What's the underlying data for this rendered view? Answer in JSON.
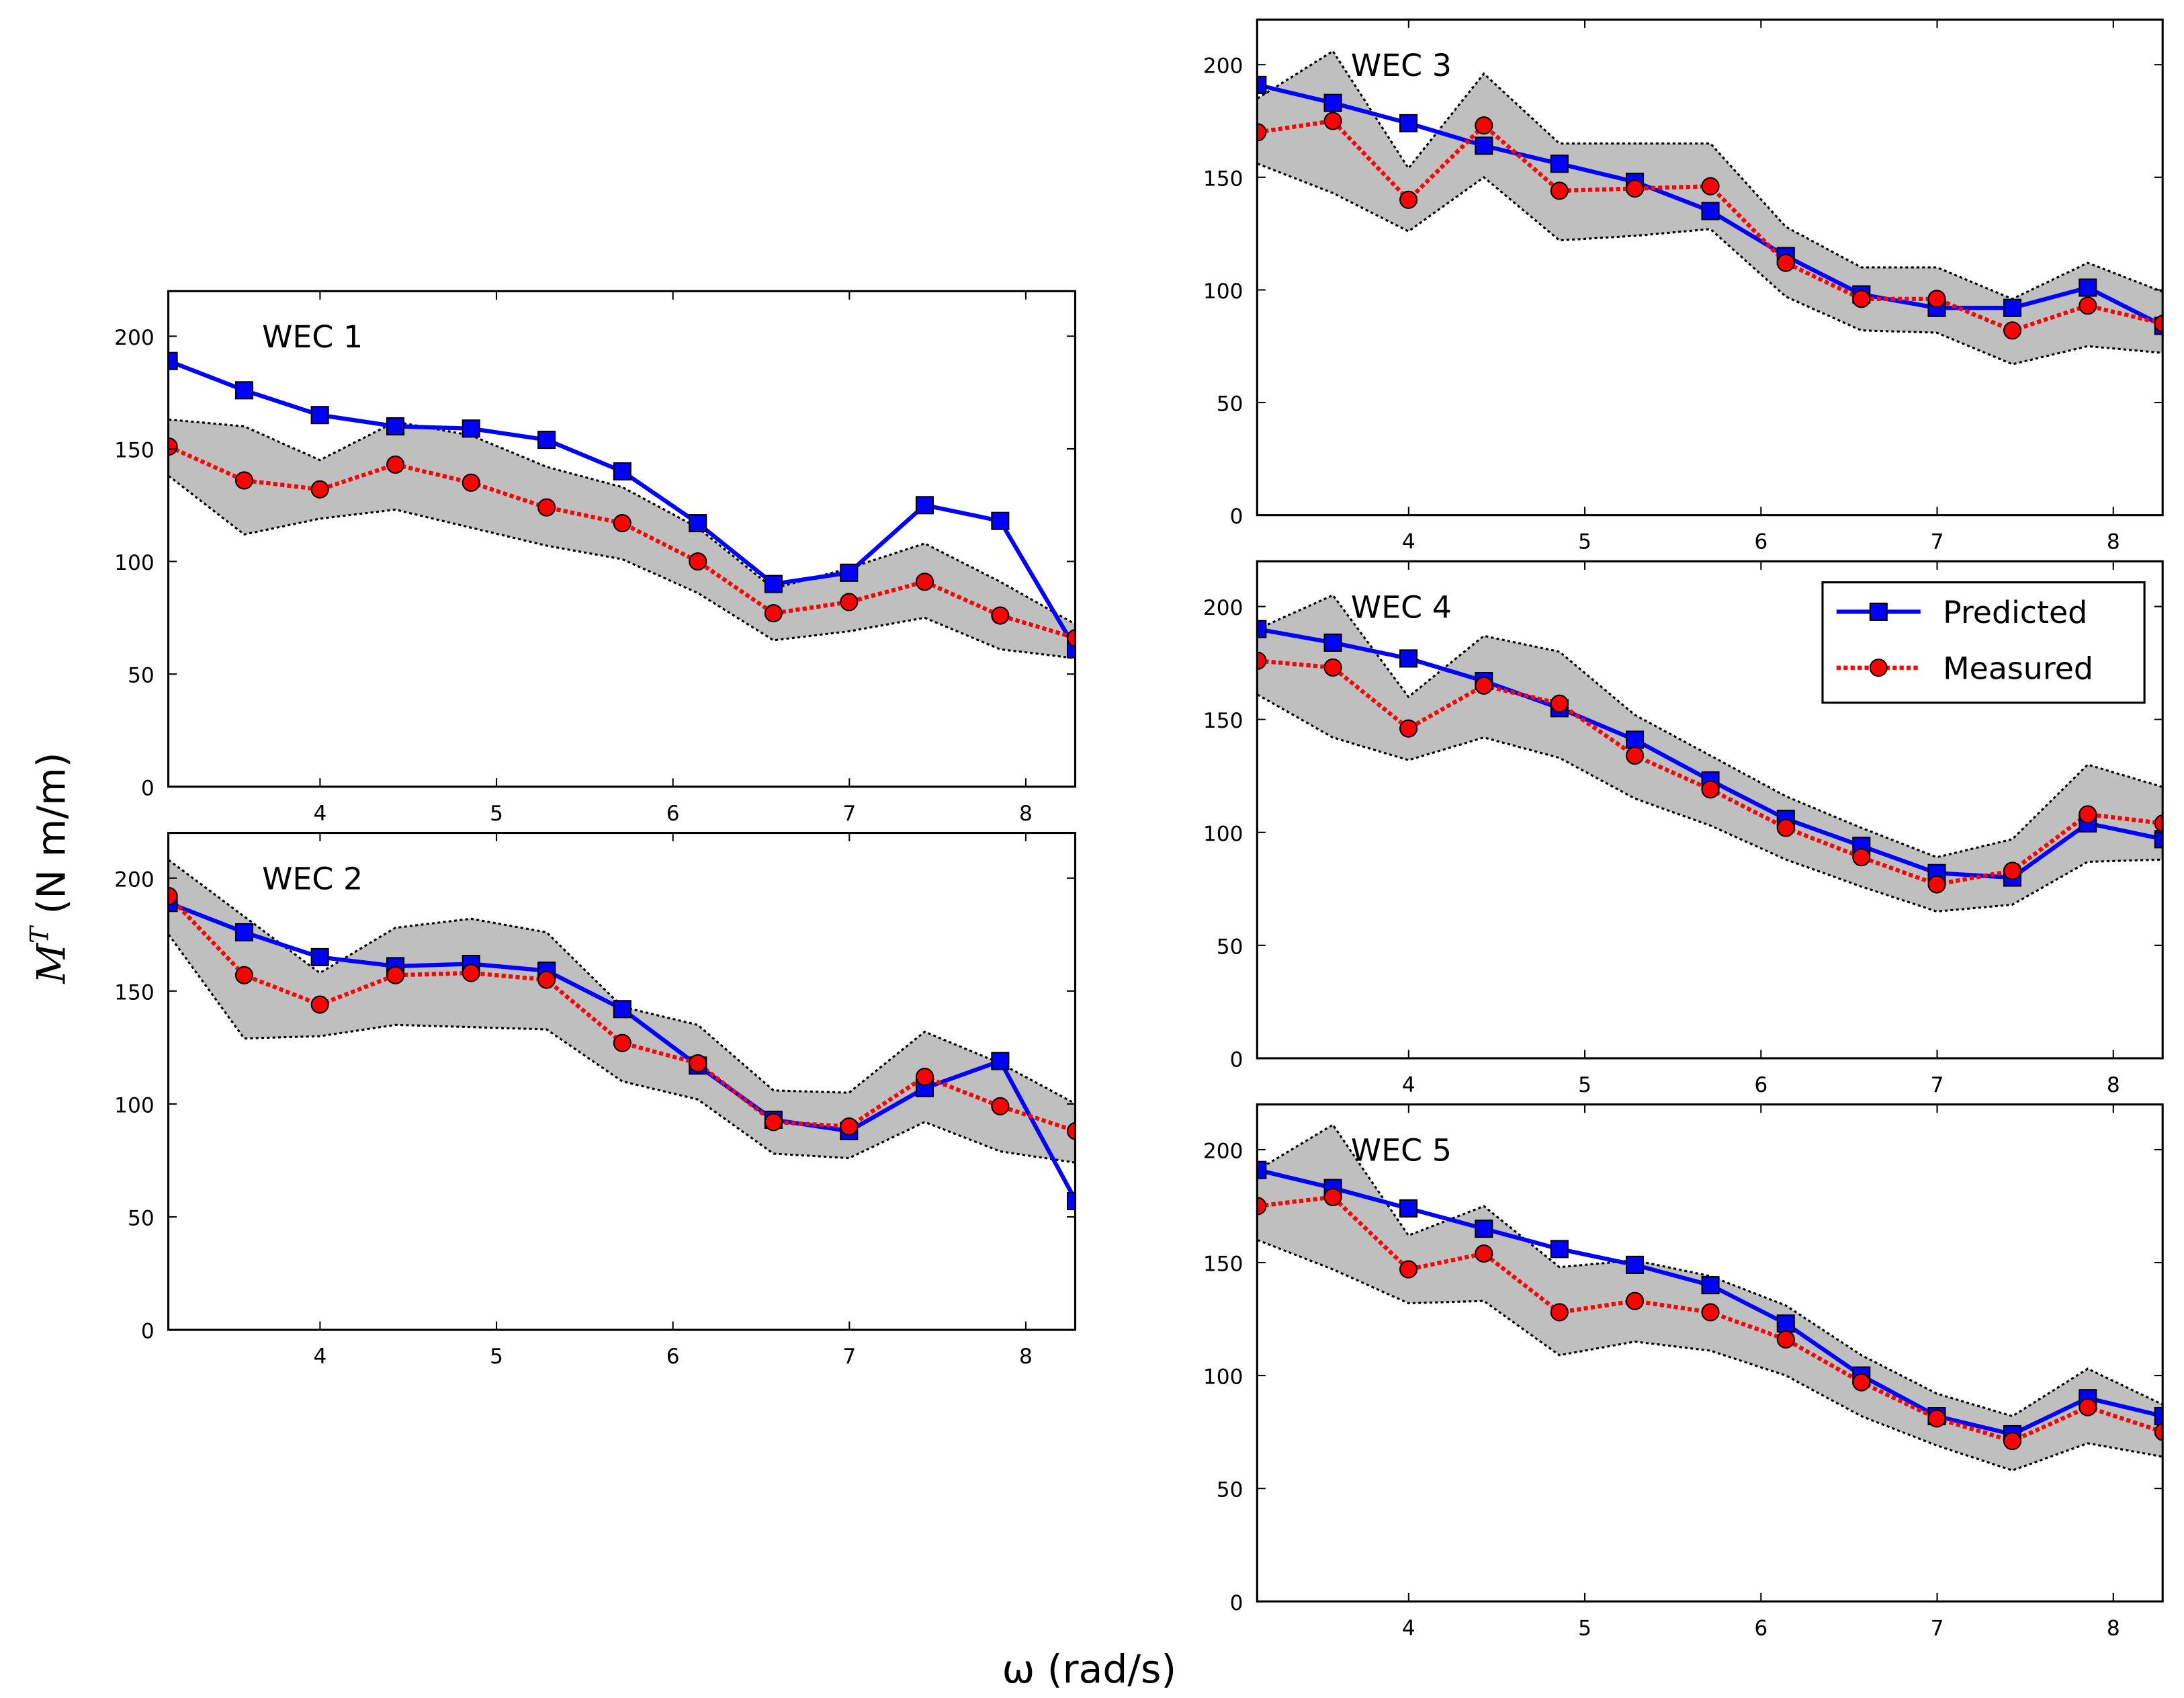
{
  "chart_data": {
    "type": "line",
    "xlabel": "ω (rad/s)",
    "ylabel_main": "M",
    "ylabel_sup": "T",
    "ylabel_units": " (N m/m)",
    "xlim": [
      3.14,
      8.28
    ],
    "ylim": [
      0,
      220
    ],
    "xticks": [
      4,
      5,
      6,
      7,
      8
    ],
    "yticks": [
      0,
      50,
      100,
      150,
      200
    ],
    "grid": false,
    "legend": {
      "placement": "top-right of WEC 4",
      "entries": [
        "Predicted",
        "Measured"
      ]
    },
    "colors": {
      "predicted": "#0000ff",
      "measured": "#ff0000",
      "band": "#bfbfbf",
      "band_edge": "#000000"
    },
    "x": [
      3.142,
      3.57,
      3.999,
      4.427,
      4.856,
      5.284,
      5.713,
      6.141,
      6.57,
      6.998,
      7.427,
      7.855,
      8.284
    ],
    "panels": [
      {
        "title": "WEC 1",
        "predicted": [
          189,
          176,
          165,
          160,
          159,
          154,
          140,
          117,
          90,
          95,
          125,
          118,
          61
        ],
        "measured": [
          151,
          136,
          132,
          143,
          135,
          124,
          117,
          100,
          77,
          82,
          91,
          76,
          66
        ],
        "upper": [
          163,
          160,
          145,
          162,
          156,
          142,
          133,
          115,
          88,
          97,
          108,
          91,
          72
        ],
        "lower": [
          138,
          112,
          119,
          123,
          115,
          107,
          101,
          86,
          65,
          69,
          75,
          61,
          57
        ]
      },
      {
        "title": "WEC 2",
        "predicted": [
          189,
          176,
          165,
          161,
          162,
          159,
          142,
          117,
          93,
          88,
          107,
          119,
          57
        ],
        "measured": [
          192,
          157,
          144,
          157,
          158,
          155,
          127,
          118,
          92,
          90,
          112,
          99,
          88
        ],
        "upper": [
          208,
          183,
          158,
          178,
          182,
          176,
          143,
          135,
          106,
          105,
          132,
          118,
          100
        ],
        "lower": [
          175,
          129,
          130,
          135,
          134,
          133,
          110,
          102,
          78,
          76,
          92,
          79,
          74
        ]
      },
      {
        "title": "WEC 3",
        "predicted": [
          191,
          183,
          174,
          164,
          156,
          148,
          135,
          115,
          98,
          92,
          92,
          101,
          84
        ],
        "measured": [
          170,
          175,
          140,
          173,
          144,
          145,
          146,
          112,
          96,
          96,
          82,
          93,
          85
        ],
        "upper": [
          185,
          206,
          154,
          196,
          165,
          165,
          165,
          128,
          110,
          110,
          96,
          112,
          99
        ],
        "lower": [
          156,
          143,
          126,
          150,
          122,
          124,
          127,
          97,
          82,
          81,
          67,
          75,
          72
        ]
      },
      {
        "title": "WEC 4",
        "predicted": [
          190,
          184,
          177,
          167,
          155,
          141,
          123,
          106,
          94,
          82,
          80,
          104,
          97
        ],
        "measured": [
          176,
          173,
          146,
          165,
          157,
          134,
          119,
          102,
          89,
          77,
          83,
          108,
          104
        ],
        "upper": [
          190,
          205,
          160,
          187,
          180,
          152,
          134,
          116,
          102,
          89,
          97,
          130,
          120
        ],
        "lower": [
          161,
          142,
          132,
          142,
          133,
          115,
          103,
          88,
          76,
          65,
          68,
          87,
          88
        ]
      },
      {
        "title": "WEC 5",
        "predicted": [
          191,
          183,
          174,
          165,
          156,
          149,
          140,
          123,
          100,
          82,
          74,
          90,
          82
        ],
        "measured": [
          175,
          179,
          147,
          154,
          128,
          133,
          128,
          116,
          97,
          81,
          71,
          86,
          75
        ],
        "upper": [
          191,
          211,
          162,
          175,
          148,
          151,
          144,
          131,
          109,
          92,
          82,
          103,
          87
        ],
        "lower": [
          160,
          147,
          132,
          133,
          109,
          115,
          111,
          100,
          82,
          69,
          58,
          70,
          64
        ]
      }
    ]
  }
}
